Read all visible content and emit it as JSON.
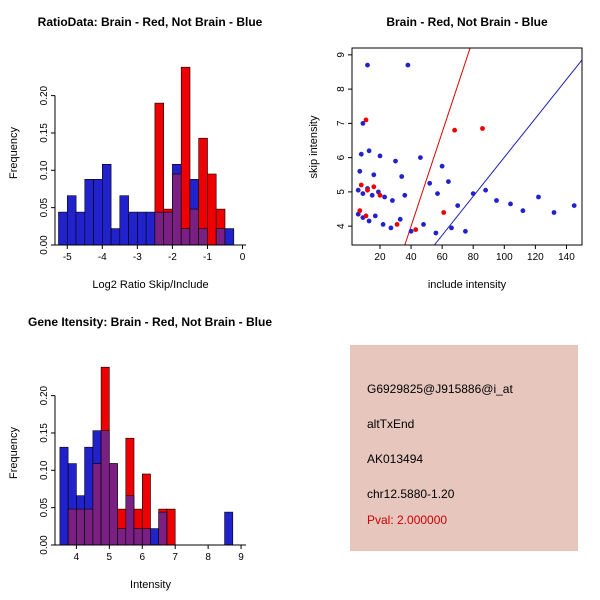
{
  "info_panel": {
    "bg_color": "#E7C6BE",
    "lines": [
      "G6929825@J915886@i_at",
      "altTxEnd",
      "AK013494",
      "chr12.5880-1.20"
    ],
    "pval": "Pval: 2.000000",
    "pval_color": "#CC0000"
  },
  "chart_data": [
    {
      "type": "bar",
      "title": "RatioData: Brain - Red, Not Brain - Blue",
      "xlabel": "Log2 Ratio Skip/Include",
      "ylabel": "Frequency",
      "xlim": [
        -5.35,
        0.1
      ],
      "ylim": [
        0,
        0.245
      ],
      "xticks": [
        -5,
        -4,
        -3,
        -2,
        -1,
        0
      ],
      "xtick_labels": [
        "-5",
        "-4",
        "-3",
        "-2",
        "-1",
        "0"
      ],
      "yticks": [
        0,
        0.05,
        0.1,
        0.15,
        0.2
      ],
      "ytick_labels": [
        "0.00",
        "0.05",
        "0.10",
        "0.15",
        "0.20"
      ],
      "bin_width": 0.25,
      "overlap_color": "#7A2082",
      "grid": false,
      "series": [
        {
          "name": "Not Brain",
          "color": "#2222CC",
          "bars": [
            {
              "x": -5.25,
              "h": 0.044
            },
            {
              "x": -5.0,
              "h": 0.066
            },
            {
              "x": -4.75,
              "h": 0.044
            },
            {
              "x": -4.5,
              "h": 0.088
            },
            {
              "x": -4.25,
              "h": 0.088
            },
            {
              "x": -4.0,
              "h": 0.108
            },
            {
              "x": -3.75,
              "h": 0.022
            },
            {
              "x": -3.5,
              "h": 0.066
            },
            {
              "x": -3.25,
              "h": 0.044
            },
            {
              "x": -3.0,
              "h": 0.044
            },
            {
              "x": -2.75,
              "h": 0.044
            },
            {
              "x": -2.5,
              "h": 0.044
            },
            {
              "x": -2.25,
              "h": 0.044
            },
            {
              "x": -2.0,
              "h": 0.108
            },
            {
              "x": -1.75,
              "h": 0.022
            },
            {
              "x": -1.5,
              "h": 0.088
            },
            {
              "x": -1.25,
              "h": 0.022
            },
            {
              "x": -0.75,
              "h": 0.022
            },
            {
              "x": -0.5,
              "h": 0.022
            }
          ]
        },
        {
          "name": "Brain",
          "color": "#EE0000",
          "bars": [
            {
              "x": -2.5,
              "h": 0.19
            },
            {
              "x": -2.25,
              "h": 0.048
            },
            {
              "x": -2.0,
              "h": 0.095
            },
            {
              "x": -1.75,
              "h": 0.238
            },
            {
              "x": -1.5,
              "h": 0.048
            },
            {
              "x": -1.25,
              "h": 0.143
            },
            {
              "x": -1.0,
              "h": 0.095
            },
            {
              "x": -0.75,
              "h": 0.048
            }
          ]
        }
      ]
    },
    {
      "type": "scatter",
      "title": "Brain - Red, Not Brain - Blue",
      "xlabel": "include intensity",
      "ylabel": "skip intensity",
      "xlim": [
        2,
        150
      ],
      "ylim": [
        3.45,
        9.2
      ],
      "xticks": [
        20,
        40,
        60,
        80,
        100,
        120,
        140
      ],
      "xtick_labels": [
        "20",
        "40",
        "60",
        "80",
        "100",
        "120",
        "140"
      ],
      "yticks": [
        4,
        5,
        6,
        7,
        8,
        9
      ],
      "ytick_labels": [
        "4",
        "5",
        "6",
        "7",
        "8",
        "9"
      ],
      "grid": false,
      "series": [
        {
          "name": "Not Brain",
          "color": "#2222CC",
          "points": [
            [
              12,
              8.7
            ],
            [
              38,
              8.7
            ],
            [
              9,
              7.0
            ],
            [
              8,
              6.1
            ],
            [
              13,
              6.2
            ],
            [
              20,
              6.05
            ],
            [
              30,
              5.9
            ],
            [
              46,
              6.0
            ],
            [
              7,
              5.6
            ],
            [
              16,
              5.5
            ],
            [
              34,
              5.45
            ],
            [
              60,
              5.75
            ],
            [
              6,
              5.05
            ],
            [
              9,
              4.95
            ],
            [
              12,
              5.1
            ],
            [
              15,
              4.9
            ],
            [
              19,
              5.0
            ],
            [
              23,
              4.85
            ],
            [
              28,
              4.75
            ],
            [
              36,
              4.9
            ],
            [
              52,
              5.25
            ],
            [
              57,
              4.95
            ],
            [
              64,
              5.3
            ],
            [
              70,
              4.6
            ],
            [
              80,
              4.95
            ],
            [
              88,
              5.05
            ],
            [
              95,
              4.75
            ],
            [
              104,
              4.65
            ],
            [
              112,
              4.45
            ],
            [
              122,
              4.85
            ],
            [
              132,
              4.4
            ],
            [
              145,
              4.6
            ],
            [
              6,
              4.35
            ],
            [
              9,
              4.25
            ],
            [
              13,
              4.15
            ],
            [
              17,
              4.3
            ],
            [
              22,
              4.05
            ],
            [
              27,
              3.95
            ],
            [
              33,
              4.2
            ],
            [
              40,
              3.85
            ],
            [
              48,
              4.05
            ],
            [
              56,
              3.8
            ],
            [
              66,
              3.95
            ],
            [
              75,
              3.85
            ]
          ]
        },
        {
          "name": "Brain",
          "color": "#EE0000",
          "points": [
            [
              11,
              7.1
            ],
            [
              68,
              6.8
            ],
            [
              86,
              6.85
            ],
            [
              8,
              5.2
            ],
            [
              12,
              5.05
            ],
            [
              16,
              5.15
            ],
            [
              20,
              4.9
            ],
            [
              7,
              4.45
            ],
            [
              11,
              4.3
            ],
            [
              31,
              4.05
            ],
            [
              43,
              3.9
            ],
            [
              61,
              4.4
            ]
          ]
        }
      ],
      "lines": [
        {
          "name": "brain-fit-line",
          "color": "#DD0000",
          "x1": 36,
          "y1": 3.45,
          "x2": 78,
          "y2": 9.2
        },
        {
          "name": "notbrain-fit-line",
          "color": "#2020B0",
          "x1": 55,
          "y1": 3.45,
          "x2": 150,
          "y2": 8.85
        }
      ]
    },
    {
      "type": "bar",
      "title": "Gene Itensity: Brain - Red, Not Brain - Blue",
      "xlabel": "Intensity",
      "ylabel": "Frequency",
      "xlim": [
        3.35,
        9.15
      ],
      "ylim": [
        0,
        0.245
      ],
      "xticks": [
        4,
        5,
        6,
        7,
        8,
        9
      ],
      "xtick_labels": [
        "4",
        "5",
        "6",
        "7",
        "8",
        "9"
      ],
      "yticks": [
        0,
        0.05,
        0.1,
        0.15,
        0.2
      ],
      "ytick_labels": [
        "0.00",
        "0.05",
        "0.10",
        "0.15",
        "0.20"
      ],
      "bin_width": 0.25,
      "overlap_color": "#7A2082",
      "grid": false,
      "series": [
        {
          "name": "Not Brain",
          "color": "#2222CC",
          "bars": [
            {
              "x": 3.5,
              "h": 0.131
            },
            {
              "x": 3.75,
              "h": 0.109
            },
            {
              "x": 4.0,
              "h": 0.066
            },
            {
              "x": 4.25,
              "h": 0.131
            },
            {
              "x": 4.5,
              "h": 0.153
            },
            {
              "x": 4.75,
              "h": 0.153
            },
            {
              "x": 5.0,
              "h": 0.109
            },
            {
              "x": 5.25,
              "h": 0.022
            },
            {
              "x": 5.5,
              "h": 0.066
            },
            {
              "x": 5.75,
              "h": 0.022
            },
            {
              "x": 6.0,
              "h": 0.022
            },
            {
              "x": 6.25,
              "h": 0.022
            },
            {
              "x": 6.5,
              "h": 0.044
            },
            {
              "x": 8.5,
              "h": 0.044
            }
          ]
        },
        {
          "name": "Brain",
          "color": "#EE0000",
          "bars": [
            {
              "x": 3.75,
              "h": 0.048
            },
            {
              "x": 4.0,
              "h": 0.048
            },
            {
              "x": 4.25,
              "h": 0.048
            },
            {
              "x": 4.5,
              "h": 0.109
            },
            {
              "x": 4.75,
              "h": 0.238
            },
            {
              "x": 5.0,
              "h": 0.109
            },
            {
              "x": 5.25,
              "h": 0.048
            },
            {
              "x": 5.5,
              "h": 0.143
            },
            {
              "x": 5.75,
              "h": 0.048
            },
            {
              "x": 6.0,
              "h": 0.095
            },
            {
              "x": 6.5,
              "h": 0.048
            },
            {
              "x": 6.75,
              "h": 0.048
            }
          ]
        }
      ]
    }
  ]
}
